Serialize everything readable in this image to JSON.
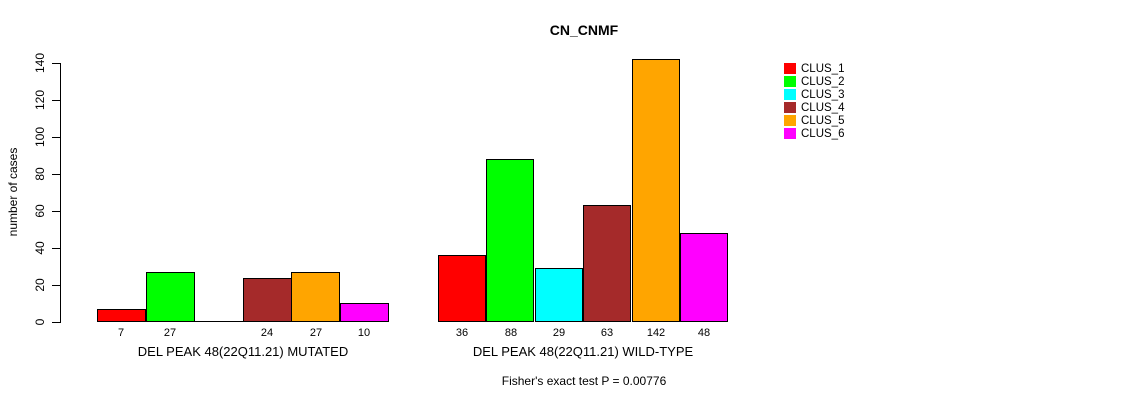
{
  "chart_data": {
    "type": "bar",
    "title": "CN_CNMF",
    "ylabel": "number of cases",
    "ylim": [
      0,
      140
    ],
    "yticks": [
      0,
      20,
      40,
      60,
      80,
      100,
      120,
      140
    ],
    "grid": false,
    "legend_position": "right",
    "series_colors": [
      "#FF0000",
      "#00FF00",
      "#00FFFF",
      "#A52A2A",
      "#FFA500",
      "#FF00FF"
    ],
    "legend": [
      {
        "name": "CLUS_1",
        "color": "#FF0000"
      },
      {
        "name": "CLUS_2",
        "color": "#00FF00"
      },
      {
        "name": "CLUS_3",
        "color": "#00FFFF"
      },
      {
        "name": "CLUS_4",
        "color": "#A52A2A"
      },
      {
        "name": "CLUS_5",
        "color": "#FFA500"
      },
      {
        "name": "CLUS_6",
        "color": "#FF00FF"
      }
    ],
    "groups": [
      {
        "label": "DEL PEAK 48(22Q11.21) MUTATED",
        "values": [
          7,
          27,
          0,
          24,
          27,
          10
        ],
        "bar_labels": [
          "7",
          "27",
          "",
          "24",
          "27",
          "10"
        ]
      },
      {
        "label": "DEL PEAK 48(22Q11.21) WILD-TYPE",
        "values": [
          36,
          88,
          29,
          63,
          142,
          48
        ],
        "bar_labels": [
          "36",
          "88",
          "29",
          "63",
          "142",
          "48"
        ]
      }
    ],
    "annotation": "Fisher's exact test P = 0.00776"
  }
}
